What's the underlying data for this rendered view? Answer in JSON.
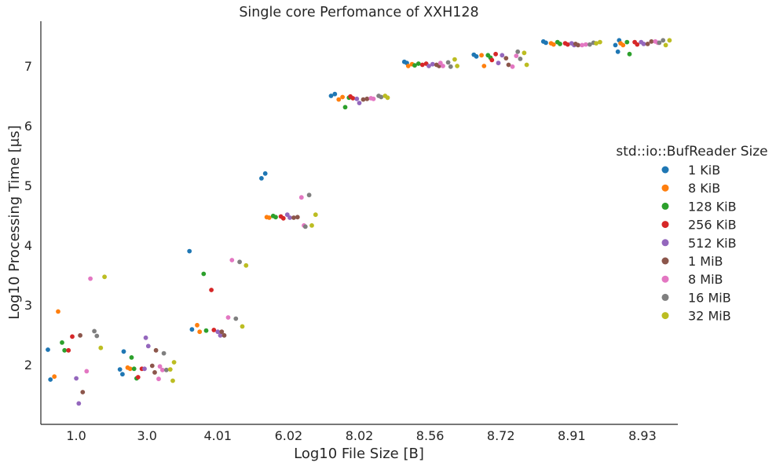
{
  "chart_data": {
    "type": "scatter",
    "title": "Single core Perfomance of XXH128",
    "xlabel": "Log10 File Size [B]",
    "ylabel": "Log10 Processing Time [μs]",
    "categories": [
      "1.0",
      "3.0",
      "4.01",
      "6.02",
      "8.02",
      "8.56",
      "8.72",
      "8.91",
      "8.93"
    ],
    "ylim": [
      1.0,
      7.75
    ],
    "yticks": [
      "2",
      "3",
      "4",
      "5",
      "6",
      "7"
    ],
    "grid": false,
    "legend": {
      "title": "std::io::BufReader Size",
      "placement": "right"
    },
    "series": [
      {
        "name": "1 KiB",
        "color": "#1f77b4",
        "points": [
          [
            0,
            2.25
          ],
          [
            0,
            1.75
          ],
          [
            1,
            2.22
          ],
          [
            1,
            1.92
          ],
          [
            1,
            1.84
          ],
          [
            2,
            3.9
          ],
          [
            2,
            2.59
          ],
          [
            3,
            5.2
          ],
          [
            3,
            5.12
          ],
          [
            4,
            6.53
          ],
          [
            4,
            6.5
          ],
          [
            5,
            7.07
          ],
          [
            5,
            7.05
          ],
          [
            6,
            7.19
          ],
          [
            6,
            7.16
          ],
          [
            7,
            7.41
          ],
          [
            7,
            7.39
          ],
          [
            8,
            7.43
          ],
          [
            8,
            7.35
          ],
          [
            8,
            7.24
          ]
        ]
      },
      {
        "name": "8 KiB",
        "color": "#ff7f0e",
        "points": [
          [
            0,
            2.89
          ],
          [
            0,
            1.8
          ],
          [
            1,
            1.95
          ],
          [
            1,
            1.93
          ],
          [
            2,
            2.66
          ],
          [
            2,
            2.55
          ],
          [
            3,
            4.47
          ],
          [
            3,
            4.46
          ],
          [
            4,
            6.48
          ],
          [
            4,
            6.44
          ],
          [
            5,
            7.03
          ],
          [
            5,
            7.0
          ],
          [
            6,
            7.18
          ],
          [
            6,
            7.0
          ],
          [
            7,
            7.38
          ],
          [
            7,
            7.36
          ],
          [
            8,
            7.38
          ],
          [
            8,
            7.35
          ]
        ]
      },
      {
        "name": "128 KiB",
        "color": "#2ca02c",
        "points": [
          [
            0,
            2.37
          ],
          [
            0,
            2.24
          ],
          [
            1,
            2.12
          ],
          [
            1,
            1.93
          ],
          [
            1,
            1.77
          ],
          [
            2,
            3.52
          ],
          [
            2,
            2.57
          ],
          [
            3,
            4.49
          ],
          [
            3,
            4.47
          ],
          [
            4,
            6.47
          ],
          [
            4,
            6.31
          ],
          [
            5,
            7.04
          ],
          [
            5,
            7.01
          ],
          [
            6,
            7.18
          ],
          [
            6,
            7.14
          ],
          [
            7,
            7.4
          ],
          [
            7,
            7.37
          ],
          [
            8,
            7.4
          ],
          [
            8,
            7.2
          ]
        ]
      },
      {
        "name": "256 KiB",
        "color": "#d62728",
        "points": [
          [
            0,
            2.47
          ],
          [
            0,
            2.24
          ],
          [
            1,
            1.93
          ],
          [
            1,
            1.79
          ],
          [
            2,
            3.25
          ],
          [
            2,
            2.58
          ],
          [
            3,
            4.48
          ],
          [
            3,
            4.45
          ],
          [
            4,
            6.49
          ],
          [
            4,
            6.46
          ],
          [
            5,
            7.04
          ],
          [
            5,
            7.02
          ],
          [
            6,
            7.2
          ],
          [
            6,
            7.1
          ],
          [
            7,
            7.38
          ],
          [
            7,
            7.36
          ],
          [
            8,
            7.4
          ],
          [
            8,
            7.36
          ]
        ]
      },
      {
        "name": "512 KiB",
        "color": "#9467bd",
        "points": [
          [
            0,
            1.77
          ],
          [
            0,
            1.35
          ],
          [
            1,
            2.45
          ],
          [
            1,
            2.31
          ],
          [
            1,
            1.93
          ],
          [
            2,
            2.55
          ],
          [
            2,
            2.49
          ],
          [
            3,
            4.51
          ],
          [
            3,
            4.46
          ],
          [
            4,
            6.45
          ],
          [
            4,
            6.38
          ],
          [
            5,
            7.03
          ],
          [
            5,
            7.0
          ],
          [
            6,
            7.18
          ],
          [
            6,
            7.05
          ],
          [
            7,
            7.38
          ],
          [
            7,
            7.35
          ],
          [
            8,
            7.4
          ],
          [
            8,
            7.37
          ]
        ]
      },
      {
        "name": "1 MiB",
        "color": "#8c564b",
        "points": [
          [
            0,
            2.49
          ],
          [
            0,
            1.54
          ],
          [
            1,
            2.24
          ],
          [
            1,
            1.98
          ],
          [
            1,
            1.87
          ],
          [
            2,
            2.55
          ],
          [
            2,
            2.49
          ],
          [
            3,
            4.47
          ],
          [
            3,
            4.46
          ],
          [
            4,
            6.45
          ],
          [
            4,
            6.44
          ],
          [
            5,
            7.02
          ],
          [
            5,
            7.0
          ],
          [
            6,
            7.13
          ],
          [
            6,
            7.02
          ],
          [
            7,
            7.37
          ],
          [
            7,
            7.35
          ],
          [
            8,
            7.41
          ],
          [
            8,
            7.37
          ]
        ]
      },
      {
        "name": "8 MiB",
        "color": "#e377c2",
        "points": [
          [
            0,
            3.44
          ],
          [
            0,
            1.89
          ],
          [
            1,
            1.97
          ],
          [
            1,
            1.91
          ],
          [
            1,
            1.76
          ],
          [
            2,
            3.75
          ],
          [
            2,
            2.79
          ],
          [
            3,
            4.8
          ],
          [
            3,
            4.33
          ],
          [
            4,
            6.46
          ],
          [
            4,
            6.45
          ],
          [
            5,
            7.05
          ],
          [
            5,
            7.0
          ],
          [
            6,
            7.17
          ],
          [
            6,
            6.99
          ],
          [
            7,
            7.36
          ],
          [
            7,
            7.35
          ],
          [
            8,
            7.41
          ],
          [
            8,
            7.39
          ]
        ]
      },
      {
        "name": "16 MiB",
        "color": "#7f7f7f",
        "points": [
          [
            0,
            2.56
          ],
          [
            0,
            2.48
          ],
          [
            1,
            2.19
          ],
          [
            1,
            1.91
          ],
          [
            2,
            3.72
          ],
          [
            2,
            2.77
          ],
          [
            3,
            4.84
          ],
          [
            3,
            4.31
          ],
          [
            4,
            6.5
          ],
          [
            4,
            6.48
          ],
          [
            5,
            7.06
          ],
          [
            5,
            6.99
          ],
          [
            6,
            7.24
          ],
          [
            6,
            7.12
          ],
          [
            7,
            7.39
          ],
          [
            7,
            7.36
          ],
          [
            8,
            7.43
          ],
          [
            8,
            7.39
          ]
        ]
      },
      {
        "name": "32 MiB",
        "color": "#bcbd22",
        "points": [
          [
            0,
            3.47
          ],
          [
            0,
            2.28
          ],
          [
            1,
            2.04
          ],
          [
            1,
            1.92
          ],
          [
            1,
            1.73
          ],
          [
            2,
            3.66
          ],
          [
            2,
            2.64
          ],
          [
            3,
            4.51
          ],
          [
            3,
            4.33
          ],
          [
            4,
            6.5
          ],
          [
            4,
            6.47
          ],
          [
            5,
            7.11
          ],
          [
            5,
            7.0
          ],
          [
            6,
            7.22
          ],
          [
            6,
            7.02
          ],
          [
            7,
            7.4
          ],
          [
            7,
            7.38
          ],
          [
            8,
            7.43
          ],
          [
            8,
            7.35
          ]
        ]
      }
    ]
  }
}
